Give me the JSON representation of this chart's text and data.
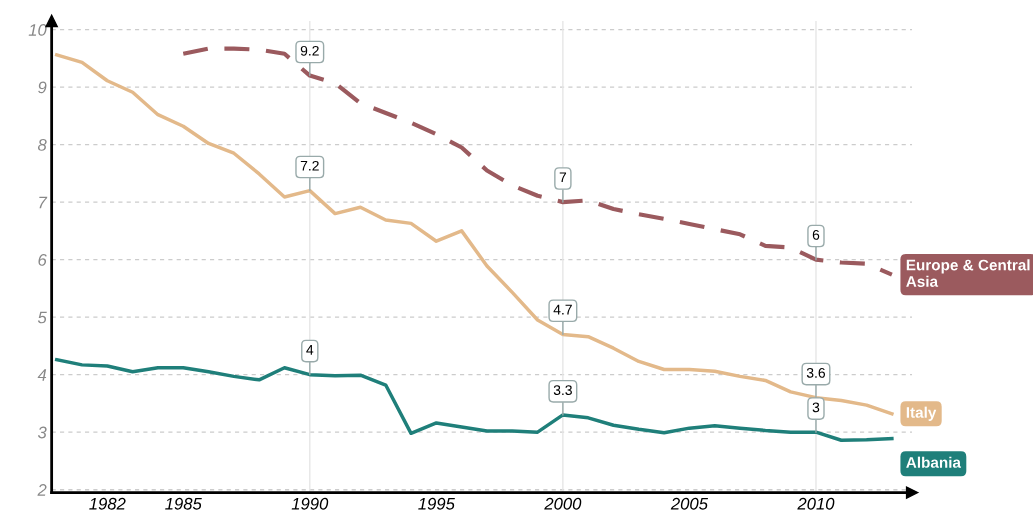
{
  "chart_data": {
    "type": "line",
    "x": [
      1980,
      1981,
      1982,
      1983,
      1984,
      1985,
      1986,
      1987,
      1988,
      1989,
      1990,
      1991,
      1992,
      1993,
      1994,
      1995,
      1996,
      1997,
      1998,
      1999,
      2000,
      2001,
      2002,
      2003,
      2004,
      2005,
      2006,
      2007,
      2008,
      2009,
      2010,
      2011,
      2012,
      2013
    ],
    "series": [
      {
        "name": "Europe & Central Asia",
        "color": "#9b5a5e",
        "line_style": "dashed",
        "values": [
          null,
          null,
          null,
          null,
          null,
          9.58,
          9.67,
          9.67,
          9.65,
          9.58,
          9.2,
          9.07,
          8.72,
          8.55,
          8.38,
          8.18,
          7.95,
          7.55,
          7.29,
          7.11,
          7,
          7.03,
          6.88,
          6.79,
          6.71,
          6.62,
          6.53,
          6.44,
          6.24,
          6.21,
          6,
          5.95,
          5.93,
          5.74
        ]
      },
      {
        "name": "Italy",
        "color": "#e3b98a",
        "line_style": "solid",
        "values": [
          9.56,
          9.43,
          9.11,
          8.91,
          8.52,
          8.32,
          8.02,
          7.85,
          7.49,
          7.09,
          7.2,
          6.8,
          6.91,
          6.69,
          6.63,
          6.32,
          6.5,
          5.89,
          5.43,
          4.95,
          4.7,
          4.66,
          4.46,
          4.23,
          4.09,
          4.09,
          4.06,
          3.97,
          3.9,
          3.7,
          3.6,
          3.55,
          3.47,
          3.32
        ]
      },
      {
        "name": "Albania",
        "color": "#1f7f7a",
        "line_style": "solid",
        "values": [
          4.26,
          4.17,
          4.15,
          4.05,
          4.12,
          4.12,
          4.05,
          3.97,
          3.91,
          4.12,
          4,
          3.98,
          3.99,
          3.82,
          2.98,
          3.16,
          3.09,
          3.02,
          3.02,
          3,
          3.3,
          3.25,
          3.12,
          3.05,
          2.99,
          3.07,
          3.11,
          3.07,
          3.03,
          3,
          3,
          2.86,
          2.87,
          2.89
        ]
      }
    ],
    "annotations": [
      {
        "text": "9.2",
        "x": 1990,
        "y": 9.2
      },
      {
        "text": "7.2",
        "x": 1990,
        "y": 7.2
      },
      {
        "text": "4",
        "x": 1990,
        "y": 4
      },
      {
        "text": "7",
        "x": 2000,
        "y": 7
      },
      {
        "text": "4.7",
        "x": 2000,
        "y": 4.7
      },
      {
        "text": "3.3",
        "x": 2000,
        "y": 3.3
      },
      {
        "text": "6",
        "x": 2010,
        "y": 6
      },
      {
        "text": "3.6",
        "x": 2010,
        "y": 3.6
      },
      {
        "text": "3",
        "x": 2010,
        "y": 3
      }
    ],
    "ref_lines": [
      {
        "axis": "x",
        "value": 1990,
        "color": "#e6e6e6"
      },
      {
        "axis": "x",
        "value": 2000,
        "color": "#e6e6e6"
      },
      {
        "axis": "x",
        "value": 2010,
        "color": "#e6e6e6"
      }
    ],
    "xlim": [
      1979.8,
      2013.8
    ],
    "xticks": [
      1982,
      1985,
      1990,
      1995,
      2000,
      2005,
      2010
    ],
    "ylim": [
      1.95,
      10.15
    ],
    "yticks": [
      2,
      3,
      4,
      5,
      6,
      7,
      8,
      9,
      10
    ],
    "grid": "y"
  }
}
